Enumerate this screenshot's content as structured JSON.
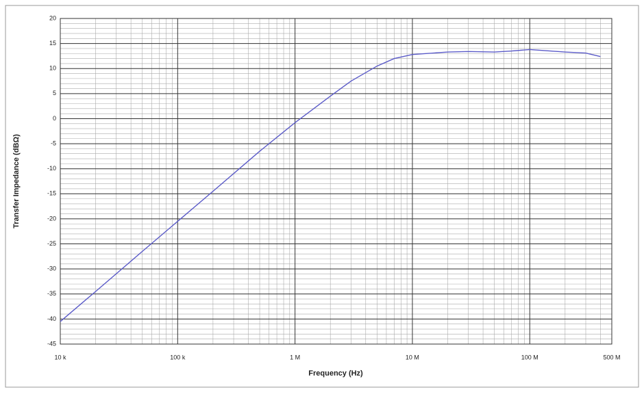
{
  "chart_data": {
    "type": "line",
    "x_label": "Frequency (Hz)",
    "y_label": "Transfer Impedance (dBΩ)",
    "xscale": "log",
    "xlim": [
      10000,
      500000000
    ],
    "xticks": [
      {
        "value": 10000,
        "label": "10 k"
      },
      {
        "value": 100000,
        "label": "100 k"
      },
      {
        "value": 1000000,
        "label": "1 M"
      },
      {
        "value": 10000000,
        "label": "10 M"
      },
      {
        "value": 100000000,
        "label": "100 M"
      },
      {
        "value": 500000000,
        "label": "500 M"
      }
    ],
    "ylim": [
      -45,
      20
    ],
    "yticks": [
      -45,
      -40,
      -35,
      -30,
      -25,
      -20,
      -15,
      -10,
      -5,
      0,
      5,
      10,
      15,
      20
    ],
    "grid": true,
    "series": [
      {
        "name": "Transfer Impedance",
        "color": "#5a5ac8",
        "x": [
          10000,
          20000,
          50000,
          100000,
          200000,
          500000,
          1000000,
          2000000,
          3000000,
          5000000,
          7000000,
          10000000,
          20000000,
          30000000,
          50000000,
          70000000,
          100000000,
          150000000,
          200000000,
          300000000,
          400000000
        ],
        "values": [
          -40.5,
          -34.5,
          -26.5,
          -20.5,
          -14.5,
          -6.5,
          -0.8,
          4.5,
          7.5,
          10.5,
          12,
          12.8,
          13.3,
          13.4,
          13.3,
          13.5,
          13.8,
          13.5,
          13.3,
          13.1,
          12.4
        ]
      }
    ]
  }
}
